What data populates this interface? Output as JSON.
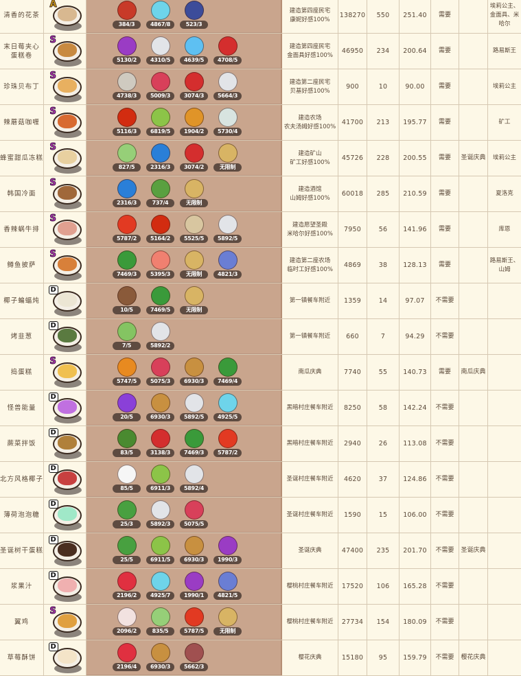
{
  "ingredient_colors": {
    "red-flower": "#c83a28",
    "blue-fruit": "#6ed4ea",
    "blue-dragon": "#3c4c9a",
    "purple-fruit": "#9a3cc4",
    "flour": "#e2e4e8",
    "ice": "#5ec0f2",
    "red-apple": "#d42e2e",
    "clam": "#cfcac0",
    "red-cube": "#d8405a",
    "chili": "#d22c10",
    "cactus": "#8cc448",
    "orange-mushroom": "#e09428",
    "white-mushroom": "#d8e4e0",
    "melon": "#96cf78",
    "blue-crystal": "#2a7fd8",
    "wheat": "#d8b464",
    "green-beans": "#5aa040",
    "tomato": "#e23a22",
    "snail": "#d8c6a0",
    "spinach": "#3a9a3a",
    "salmon": "#f08070",
    "blue-mushroom": "#6a7ed4",
    "coconut": "#8a5a3a",
    "leek": "#84c462",
    "pumpkin": "#e88a20",
    "honey-blob": "#c89040",
    "purple-crystal": "#8a40d8",
    "fern": "#4a8a30",
    "marshmallow": "#f6f6f6",
    "mint": "#48a040",
    "strawberry": "#e03040",
    "chicken": "#f2e2e0",
    "ham": "#a05050"
  },
  "rows": [
    {
      "name": "清香的花茶",
      "grade": "A",
      "food": "#d8b890",
      "ingredients": [
        {
          "icon": "red-flower",
          "qty": "384/3"
        },
        {
          "icon": "blue-fruit",
          "qty": "4867/8"
        },
        {
          "icon": "blue-dragon",
          "qty": "523/3"
        }
      ],
      "source": "建造第四座民宅\n康妮好感100%",
      "price": "138270",
      "count": "550",
      "ratio": "251.40",
      "need": "需要",
      "event": "",
      "npc": "埃莉公主、\n金面具、米\n哈尔"
    },
    {
      "name": "末日莓夹心\n蛋糕卷",
      "grade": "S",
      "food": "#c88a40",
      "ingredients": [
        {
          "icon": "purple-fruit",
          "qty": "5130/2"
        },
        {
          "icon": "flour",
          "qty": "4310/5"
        },
        {
          "icon": "ice",
          "qty": "4639/5"
        },
        {
          "icon": "red-apple",
          "qty": "4708/5"
        }
      ],
      "source": "建造第四座民宅\n金面具好感100%",
      "price": "46950",
      "count": "234",
      "ratio": "200.64",
      "need": "需要",
      "event": "",
      "npc": "路易斯王"
    },
    {
      "name": "珍珠贝布丁",
      "grade": "S",
      "food": "#e8b060",
      "ingredients": [
        {
          "icon": "clam",
          "qty": "4738/3"
        },
        {
          "icon": "red-cube",
          "qty": "5009/3"
        },
        {
          "icon": "red-apple",
          "qty": "3074/3"
        },
        {
          "icon": "flour",
          "qty": "5664/3"
        }
      ],
      "source": "建造第二座民宅\n贝基好感100%",
      "price": "900",
      "count": "10",
      "ratio": "90.00",
      "need": "需要",
      "event": "",
      "npc": "埃莉公主"
    },
    {
      "name": "辣蘑菇咖喱",
      "grade": "S",
      "food": "#d86a30",
      "ingredients": [
        {
          "icon": "chili",
          "qty": "5116/3"
        },
        {
          "icon": "cactus",
          "qty": "6819/5"
        },
        {
          "icon": "orange-mushroom",
          "qty": "1904/2"
        },
        {
          "icon": "white-mushroom",
          "qty": "5730/4"
        }
      ],
      "source": "建造农场\n农夫汤姆好感100%",
      "price": "41700",
      "count": "213",
      "ratio": "195.77",
      "need": "需要",
      "event": "",
      "npc": "矿工"
    },
    {
      "name": "蜂蜜甜瓜冻糕",
      "grade": "S",
      "food": "#e8d0a0",
      "ingredients": [
        {
          "icon": "melon",
          "qty": "827/5"
        },
        {
          "icon": "blue-crystal",
          "qty": "2316/3"
        },
        {
          "icon": "red-apple",
          "qty": "3074/2"
        },
        {
          "icon": "wheat",
          "qty": "无限制"
        }
      ],
      "source": "建造矿山\n矿工好感100%",
      "price": "45726",
      "count": "228",
      "ratio": "200.55",
      "need": "需要",
      "event": "圣诞庆典",
      "npc": "埃莉公主"
    },
    {
      "name": "韩国冷面",
      "grade": "S",
      "food": "#a0683a",
      "ingredients": [
        {
          "icon": "blue-crystal",
          "qty": "2316/3"
        },
        {
          "icon": "green-beans",
          "qty": "737/4"
        },
        {
          "icon": "wheat",
          "qty": "无限制"
        }
      ],
      "source": "建造酒馆\n山姆好感100%",
      "price": "60018",
      "count": "285",
      "ratio": "210.59",
      "need": "需要",
      "event": "",
      "npc": "夏洛克"
    },
    {
      "name": "香辣蜗牛排",
      "grade": "S",
      "food": "#e0a090",
      "ingredients": [
        {
          "icon": "tomato",
          "qty": "5787/2"
        },
        {
          "icon": "chili",
          "qty": "5164/2"
        },
        {
          "icon": "snail",
          "qty": "5525/5"
        },
        {
          "icon": "flour",
          "qty": "5892/5"
        }
      ],
      "source": "建造愿望圣殿\n米哈尔好感100%",
      "price": "7950",
      "count": "56",
      "ratio": "141.96",
      "need": "需要",
      "event": "",
      "npc": "库恩"
    },
    {
      "name": "鳟鱼披萨",
      "grade": "S",
      "food": "#d8803a",
      "ingredients": [
        {
          "icon": "spinach",
          "qty": "7469/3"
        },
        {
          "icon": "salmon",
          "qty": "5395/3"
        },
        {
          "icon": "wheat",
          "qty": "无限制"
        },
        {
          "icon": "blue-mushroom",
          "qty": "4821/3"
        }
      ],
      "source": "建造第二座农场\n临时工好感100%",
      "price": "4869",
      "count": "38",
      "ratio": "128.13",
      "need": "需要",
      "event": "",
      "npc": "路易斯王、\n山姆"
    },
    {
      "name": "椰子蝙蝠炖",
      "grade": "D",
      "food": "#ece6d4",
      "ingredients": [
        {
          "icon": "coconut",
          "qty": "10/5"
        },
        {
          "icon": "spinach",
          "qty": "7469/5"
        },
        {
          "icon": "wheat",
          "qty": "无限制"
        }
      ],
      "source": "第一镇餐车附近",
      "price": "1359",
      "count": "14",
      "ratio": "97.07",
      "need": "不需要",
      "event": "",
      "npc": ""
    },
    {
      "name": "烤韭葱",
      "grade": "D",
      "food": "#5a7a40",
      "ingredients": [
        {
          "icon": "leek",
          "qty": "7/5"
        },
        {
          "icon": "flour",
          "qty": "5892/2"
        }
      ],
      "source": "第一镇餐车附近",
      "price": "660",
      "count": "7",
      "ratio": "94.29",
      "need": "不需要",
      "event": "",
      "npc": ""
    },
    {
      "name": "捣蛋糕",
      "grade": "S",
      "food": "#f0c050",
      "ingredients": [
        {
          "icon": "pumpkin",
          "qty": "5747/5"
        },
        {
          "icon": "red-cube",
          "qty": "5075/3"
        },
        {
          "icon": "honey-blob",
          "qty": "6930/3"
        },
        {
          "icon": "spinach",
          "qty": "7469/4"
        }
      ],
      "source": "南瓜庆典",
      "price": "7740",
      "count": "55",
      "ratio": "140.73",
      "need": "需要",
      "event": "南瓜庆典",
      "npc": ""
    },
    {
      "name": "怪兽能量",
      "grade": "D",
      "food": "#c070e0",
      "ingredients": [
        {
          "icon": "purple-crystal",
          "qty": "20/5"
        },
        {
          "icon": "honey-blob",
          "qty": "6930/3"
        },
        {
          "icon": "flour",
          "qty": "5892/5"
        },
        {
          "icon": "blue-fruit",
          "qty": "4925/5"
        }
      ],
      "source": "黑暗村庄餐车附近",
      "price": "8250",
      "count": "58",
      "ratio": "142.24",
      "need": "不需要",
      "event": "",
      "npc": ""
    },
    {
      "name": "蕨菜拌饭",
      "grade": "D",
      "food": "#b0803a",
      "ingredients": [
        {
          "icon": "fern",
          "qty": "83/5"
        },
        {
          "icon": "red-apple",
          "qty": "3138/3"
        },
        {
          "icon": "spinach",
          "qty": "7469/3"
        },
        {
          "icon": "tomato",
          "qty": "5787/2"
        }
      ],
      "source": "黑暗村庄餐车附近",
      "price": "2940",
      "count": "26",
      "ratio": "113.08",
      "need": "不需要",
      "event": "",
      "npc": ""
    },
    {
      "name": "北方风格椰子",
      "grade": "D",
      "food": "#c84040",
      "ingredients": [
        {
          "icon": "marshmallow",
          "qty": "85/5"
        },
        {
          "icon": "cactus",
          "qty": "6911/3"
        },
        {
          "icon": "flour",
          "qty": "5892/4"
        }
      ],
      "source": "圣诞村庄餐车附近",
      "price": "4620",
      "count": "37",
      "ratio": "124.86",
      "need": "不需要",
      "event": "",
      "npc": ""
    },
    {
      "name": "薄荷泡泡糖",
      "grade": "D",
      "food": "#a0e8c8",
      "ingredients": [
        {
          "icon": "mint",
          "qty": "25/3"
        },
        {
          "icon": "flour",
          "qty": "5892/3"
        },
        {
          "icon": "red-cube",
          "qty": "5075/5"
        }
      ],
      "source": "圣诞村庄餐车附近",
      "price": "1590",
      "count": "15",
      "ratio": "106.00",
      "need": "不需要",
      "event": "",
      "npc": ""
    },
    {
      "name": "圣诞树干蛋糕",
      "grade": "D",
      "food": "#4a2e20",
      "ingredients": [
        {
          "icon": "mint",
          "qty": "25/5"
        },
        {
          "icon": "cactus",
          "qty": "6911/5"
        },
        {
          "icon": "honey-blob",
          "qty": "6930/3"
        },
        {
          "icon": "purple-fruit",
          "qty": "1990/3"
        }
      ],
      "source": "圣诞庆典",
      "price": "47400",
      "count": "235",
      "ratio": "201.70",
      "need": "不需要",
      "event": "圣诞庆典",
      "npc": ""
    },
    {
      "name": "浆果汁",
      "grade": "D",
      "food": "#f0b0b0",
      "ingredients": [
        {
          "icon": "strawberry",
          "qty": "2196/2"
        },
        {
          "icon": "blue-fruit",
          "qty": "4925/7"
        },
        {
          "icon": "purple-fruit",
          "qty": "1990/1"
        },
        {
          "icon": "blue-mushroom",
          "qty": "4821/5"
        }
      ],
      "source": "樱桃村庄餐车附近",
      "price": "17520",
      "count": "106",
      "ratio": "165.28",
      "need": "不需要",
      "event": "",
      "npc": ""
    },
    {
      "name": "翼鸡",
      "grade": "S",
      "food": "#e0a040",
      "ingredients": [
        {
          "icon": "chicken",
          "qty": "2096/2"
        },
        {
          "icon": "melon",
          "qty": "835/5"
        },
        {
          "icon": "tomato",
          "qty": "5787/5"
        },
        {
          "icon": "wheat",
          "qty": "无限制"
        }
      ],
      "source": "樱桃村庄餐车附近",
      "price": "27734",
      "count": "154",
      "ratio": "180.09",
      "need": "不需要",
      "event": "",
      "npc": ""
    },
    {
      "name": "草莓酥饼",
      "grade": "D",
      "food": "#f4e4c8",
      "ingredients": [
        {
          "icon": "strawberry",
          "qty": "2196/4"
        },
        {
          "icon": "honey-blob",
          "qty": "6930/3"
        },
        {
          "icon": "ham",
          "qty": "5662/3"
        }
      ],
      "source": "樱花庆典",
      "price": "15180",
      "count": "95",
      "ratio": "159.79",
      "need": "不需要",
      "event": "樱花庆典",
      "npc": ""
    }
  ]
}
